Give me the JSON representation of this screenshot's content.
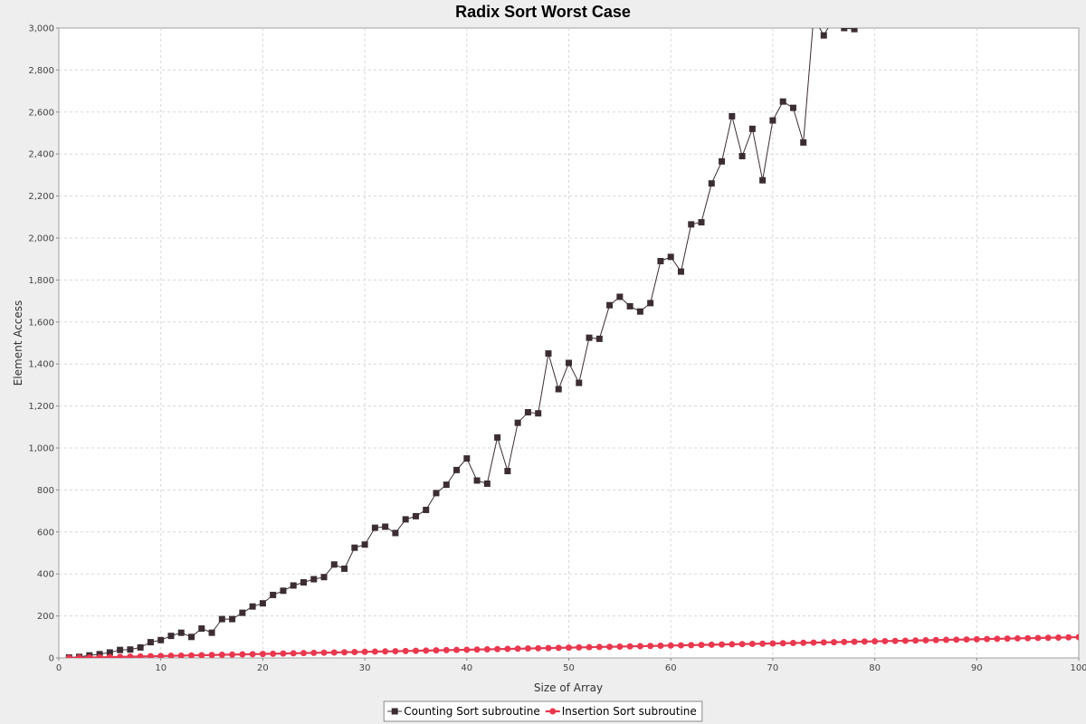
{
  "chart_data": {
    "type": "line",
    "title": "Radix Sort Worst Case",
    "xlabel": "Size of Array",
    "ylabel": "Element Access",
    "xlim": [
      0,
      100
    ],
    "ylim": [
      0,
      3000
    ],
    "x_ticks": [
      "0",
      "10",
      "20",
      "30",
      "40",
      "50",
      "60",
      "70",
      "80",
      "90",
      "100"
    ],
    "y_ticks": [
      "0",
      "200",
      "400",
      "600",
      "800",
      "1,000",
      "1,200",
      "1,400",
      "1,600",
      "1,800",
      "2,000",
      "2,200",
      "2,400",
      "2,600",
      "2,800",
      "3,000"
    ],
    "grid": true,
    "legend_position": "bottom",
    "series": [
      {
        "name": "Counting Sort subroutine",
        "color": "#3b2d33",
        "marker": "square",
        "x": [
          1,
          2,
          3,
          4,
          5,
          6,
          7,
          8,
          9,
          10,
          11,
          12,
          13,
          14,
          15,
          16,
          17,
          18,
          19,
          20,
          21,
          22,
          23,
          24,
          25,
          26,
          27,
          28,
          29,
          30,
          31,
          32,
          33,
          34,
          35,
          36,
          37,
          38,
          39,
          40,
          41,
          42,
          43,
          44,
          45,
          46,
          47,
          48,
          49,
          50,
          51,
          52,
          53,
          54,
          55,
          56,
          57,
          58,
          59,
          60,
          61,
          62,
          63,
          64,
          65,
          66,
          67,
          68,
          69,
          70,
          71,
          72,
          73,
          74,
          75,
          76,
          77,
          78
        ],
        "values": [
          2,
          5,
          12,
          18,
          26,
          38,
          40,
          50,
          75,
          85,
          105,
          120,
          100,
          140,
          120,
          185,
          185,
          215,
          245,
          260,
          300,
          320,
          345,
          360,
          375,
          385,
          445,
          425,
          525,
          540,
          620,
          625,
          595,
          660,
          675,
          705,
          785,
          825,
          895,
          950,
          845,
          830,
          1050,
          890,
          1120,
          1170,
          1165,
          1450,
          1280,
          1405,
          1310,
          1525,
          1520,
          1680,
          1720,
          1675,
          1650,
          1690,
          1890,
          1910,
          1840,
          2065,
          2075,
          2260,
          2365,
          2580,
          2390,
          2520,
          2275,
          2560,
          2650,
          2620,
          2455,
          3050,
          2965,
          3050,
          3000,
          2995
        ]
      },
      {
        "name": "Insertion Sort subroutine",
        "color": "#e8384f",
        "marker": "circle",
        "x": [
          1,
          2,
          3,
          4,
          5,
          6,
          7,
          8,
          9,
          10,
          11,
          12,
          13,
          14,
          15,
          16,
          17,
          18,
          19,
          20,
          21,
          22,
          23,
          24,
          25,
          26,
          27,
          28,
          29,
          30,
          31,
          32,
          33,
          34,
          35,
          36,
          37,
          38,
          39,
          40,
          41,
          42,
          43,
          44,
          45,
          46,
          47,
          48,
          49,
          50,
          51,
          52,
          53,
          54,
          55,
          56,
          57,
          58,
          59,
          60,
          61,
          62,
          63,
          64,
          65,
          66,
          67,
          68,
          69,
          70,
          71,
          72,
          73,
          74,
          75,
          76,
          77,
          78,
          79,
          80,
          81,
          82,
          83,
          84,
          85,
          86,
          87,
          88,
          89,
          90,
          91,
          92,
          93,
          94,
          95,
          96,
          97,
          98,
          99,
          100
        ],
        "values": [
          0,
          1,
          2,
          3,
          4,
          5,
          6,
          7,
          8,
          9,
          10,
          11,
          12,
          13,
          14,
          15,
          16,
          17,
          18,
          19,
          20,
          21,
          22,
          23,
          24,
          25,
          26,
          27,
          28,
          29,
          30,
          31,
          32,
          33,
          34,
          35,
          36,
          37,
          38,
          39,
          40,
          41,
          42,
          43,
          44,
          45,
          46,
          47,
          48,
          49,
          50,
          51,
          52,
          53,
          54,
          55,
          56,
          57,
          58,
          59,
          60,
          61,
          62,
          63,
          64,
          65,
          66,
          67,
          68,
          69,
          70,
          71,
          72,
          73,
          74,
          75,
          76,
          77,
          78,
          79,
          80,
          81,
          82,
          83,
          84,
          85,
          86,
          87,
          88,
          89,
          90,
          91,
          92,
          93,
          94,
          95,
          96,
          97,
          98,
          99
        ]
      }
    ]
  }
}
